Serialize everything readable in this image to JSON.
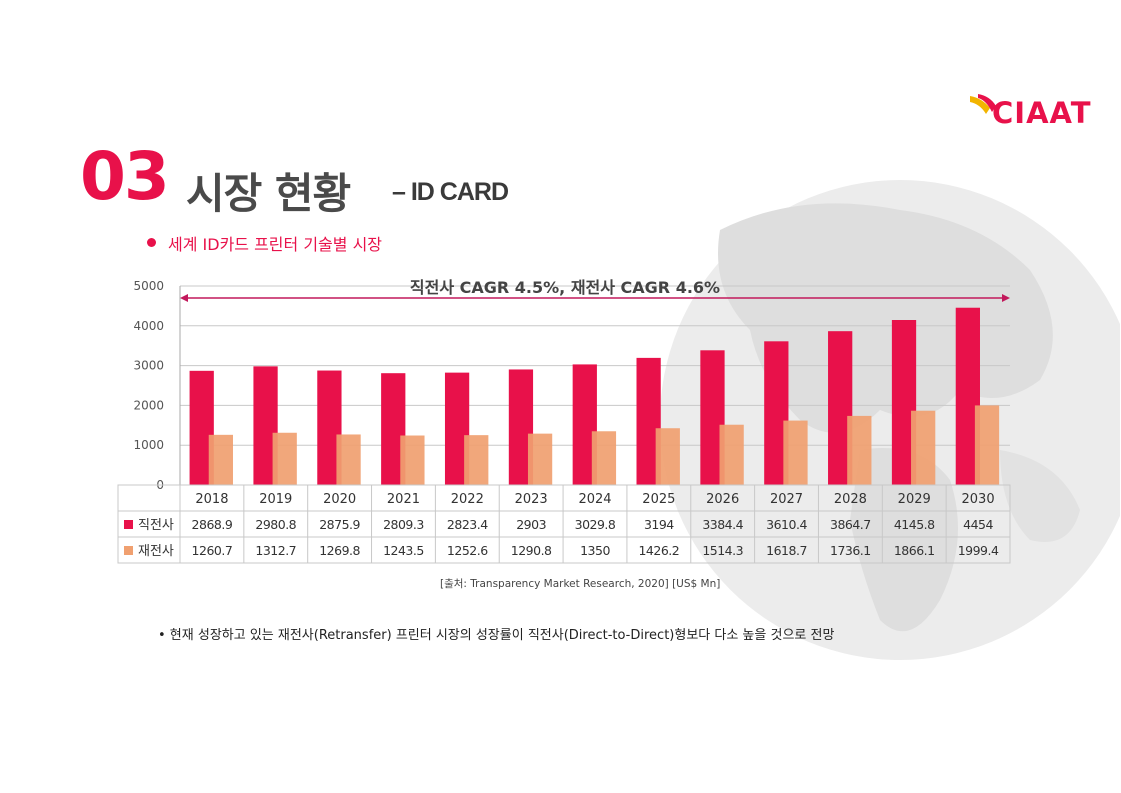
{
  "header": {
    "logo_text": "CIAAT",
    "section_number": "03",
    "title": "시장 현황",
    "title_suffix": "– ID CARD",
    "subtitle": "세계 ID카드 프린터 기술별 시장"
  },
  "colors": {
    "accent": "#e8114a",
    "series_direct": "#e8114a",
    "series_retransfer": "#f0a070"
  },
  "chart_data": {
    "type": "bar",
    "annotation": "직전사 CAGR 4.5%, 재전사 CAGR 4.6%",
    "categories": [
      "2018",
      "2019",
      "2020",
      "2021",
      "2022",
      "2023",
      "2024",
      "2025",
      "2026",
      "2027",
      "2028",
      "2029",
      "2030"
    ],
    "series": [
      {
        "name": "직전사",
        "values": [
          2868.9,
          2980.8,
          2875.9,
          2809.3,
          2823.4,
          2903,
          3029.8,
          3194,
          3384.4,
          3610.4,
          3864.7,
          4145.8,
          4454
        ]
      },
      {
        "name": "재전사",
        "values": [
          1260.7,
          1312.7,
          1269.8,
          1243.5,
          1252.6,
          1290.8,
          1350,
          1426.2,
          1514.3,
          1618.7,
          1736.1,
          1866.1,
          1999.4
        ]
      }
    ],
    "ylim": [
      0,
      5000
    ],
    "yticks": [
      "0",
      "1000",
      "2000",
      "3000",
      "4000",
      "5000"
    ],
    "grid": true,
    "legend": "data-table-left",
    "table_values": [
      [
        "2868.9",
        "2980.8",
        "2875.9",
        "2809.3",
        "2823.4",
        "2903",
        "3029.8",
        "3194",
        "3384.4",
        "3610.4",
        "3864.7",
        "4145.8",
        "4454"
      ],
      [
        "1260.7",
        "1312.7",
        "1269.8",
        "1243.5",
        "1252.6",
        "1290.8",
        "1350",
        "1426.2",
        "1514.3",
        "1618.7",
        "1736.1",
        "1866.1",
        "1999.4"
      ]
    ]
  },
  "footer": {
    "source": "[출처: Transparency Market Research, 2020] [US$ Mn]",
    "note": "• 현재 성장하고 있는 재전사(Retransfer) 프린터 시장의 성장률이 직전사(Direct-to-Direct)형보다 다소 높을 것으로 전망"
  }
}
